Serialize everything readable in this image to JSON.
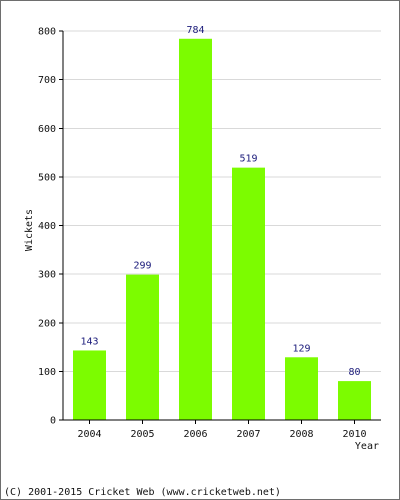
{
  "chart_data": {
    "type": "bar",
    "categories": [
      "2004",
      "2005",
      "2006",
      "2007",
      "2008",
      "2010"
    ],
    "values": [
      143,
      299,
      784,
      519,
      129,
      80
    ],
    "value_labels": [
      "143",
      "299",
      "784",
      "519",
      "129",
      "80"
    ],
    "xlabel": "Year",
    "ylabel": "Wickets",
    "ylim": [
      0,
      800
    ],
    "yticks": [
      0,
      100,
      200,
      300,
      400,
      500,
      600,
      700,
      800
    ],
    "ytick_labels": [
      "0",
      "100",
      "200",
      "300",
      "400",
      "500",
      "600",
      "700",
      "800"
    ],
    "grid": true,
    "bar_color": "#7cfc00",
    "value_label_color": "#1a1a7a"
  },
  "footer": {
    "copyright": "(C) 2001-2015 Cricket Web (www.cricketweb.net)"
  }
}
